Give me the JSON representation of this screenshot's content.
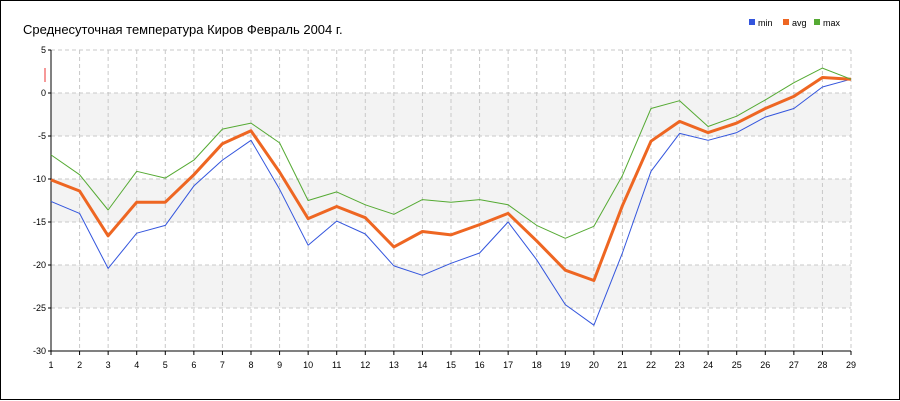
{
  "chart_data": {
    "type": "line",
    "title": "Среднесуточная температура Киров  Февраль 2004 г.",
    "xlabel": "",
    "ylabel": "",
    "x": [
      1,
      2,
      3,
      4,
      5,
      6,
      7,
      8,
      9,
      10,
      11,
      12,
      13,
      14,
      15,
      16,
      17,
      18,
      19,
      20,
      21,
      22,
      23,
      24,
      25,
      26,
      27,
      28,
      29
    ],
    "ylim": [
      -30,
      5
    ],
    "yticks": [
      5,
      0,
      -5,
      -10,
      -15,
      -20,
      -25,
      -30
    ],
    "grid": true,
    "legend_position": "top-right",
    "series": [
      {
        "name": "min",
        "color": "#3355dd",
        "values": [
          -12.6,
          -14.0,
          -20.4,
          -16.3,
          -15.4,
          -10.8,
          -7.8,
          -5.5,
          -11.2,
          -17.7,
          -14.9,
          -16.4,
          -20.1,
          -21.2,
          -19.8,
          -18.6,
          -15.0,
          -19.4,
          -24.6,
          -27.0,
          -18.6,
          -9.1,
          -4.7,
          -5.5,
          -4.6,
          -2.8,
          -1.8,
          0.7,
          1.6
        ]
      },
      {
        "name": "avg",
        "color": "#ee6622",
        "values": [
          -10.1,
          -11.4,
          -16.6,
          -12.7,
          -12.7,
          -9.5,
          -5.9,
          -4.4,
          -9.2,
          -14.6,
          -13.2,
          -14.5,
          -17.9,
          -16.1,
          -16.5,
          -15.3,
          -14.0,
          -17.2,
          -20.6,
          -21.8,
          -13.1,
          -5.6,
          -3.3,
          -4.6,
          -3.5,
          -1.8,
          -0.4,
          1.8,
          1.6
        ]
      },
      {
        "name": "max",
        "color": "#55aa33",
        "values": [
          -7.2,
          -9.5,
          -13.6,
          -9.1,
          -9.9,
          -7.8,
          -4.2,
          -3.5,
          -5.8,
          -12.5,
          -11.5,
          -13.0,
          -14.1,
          -12.4,
          -12.7,
          -12.4,
          -13.0,
          -15.4,
          -16.9,
          -15.5,
          -9.6,
          -1.8,
          -0.9,
          -3.9,
          -2.7,
          -0.8,
          1.2,
          2.9,
          1.6
        ]
      }
    ]
  }
}
